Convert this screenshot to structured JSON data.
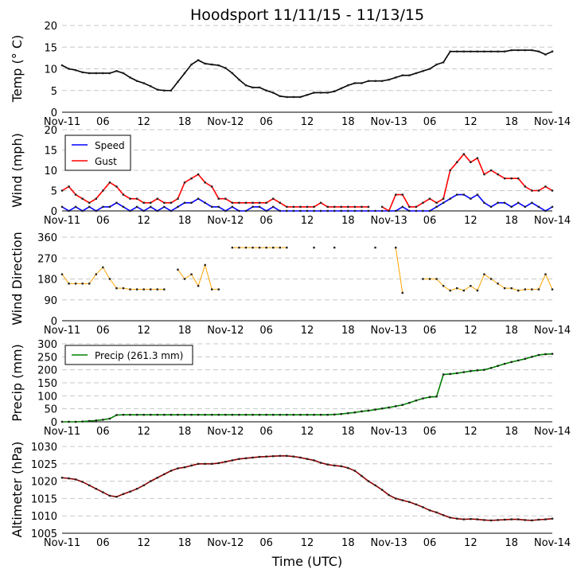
{
  "chart_data": [
    {
      "type": "line",
      "title": "Hoodsport 11/11/15 - 11/13/15",
      "xlabel": "Time (UTC)",
      "ylabel": "Temp ($^\\circ$C)",
      "ylabel_display": "Temp (° C)",
      "ylim": [
        0,
        20
      ],
      "yticks": [
        "0",
        "5",
        "10",
        "15",
        "20"
      ],
      "xticks": [
        "Nov-11",
        "06",
        "12",
        "18",
        "Nov-12",
        "06",
        "12",
        "18",
        "Nov-13",
        "06",
        "12",
        "18",
        "Nov-14"
      ],
      "x_unit": "hours since Nov-11 00:00",
      "series": [
        {
          "name": "Temp",
          "color": "#000000",
          "values": [
            10.8,
            10,
            9.7,
            9.2,
            9,
            9,
            9,
            9,
            9.5,
            9,
            8,
            7.2,
            6.7,
            6,
            5.2,
            5,
            5,
            7,
            9,
            11,
            12,
            11.2,
            11,
            10.8,
            10.2,
            9,
            7.5,
            6.2,
            5.7,
            5.7,
            5,
            4.5,
            3.7,
            3.5,
            3.5,
            3.5,
            4,
            4.5,
            4.5,
            4.5,
            4.8,
            5.5,
            6.2,
            6.7,
            6.7,
            7.2,
            7.2,
            7.2,
            7.5,
            8,
            8.5,
            8.5,
            9,
            9.5,
            10,
            11,
            11.5,
            14,
            14,
            14,
            14,
            14,
            14,
            14,
            14,
            14,
            14.3,
            14.3,
            14.3,
            14.3,
            14,
            13.3,
            14
          ]
        }
      ]
    },
    {
      "type": "line",
      "ylabel": "Wind (mph)",
      "ylim": [
        0,
        20
      ],
      "yticks": [
        "0",
        "5",
        "10",
        "15",
        "20"
      ],
      "xticks": [
        "Nov-11",
        "06",
        "12",
        "18",
        "Nov-12",
        "06",
        "12",
        "18",
        "Nov-13",
        "06",
        "12",
        "18",
        "Nov-14"
      ],
      "legend": "top-left",
      "series": [
        {
          "name": "Speed",
          "color": "#0000ff",
          "values": [
            1,
            0,
            1,
            0,
            1,
            0,
            1,
            1,
            2,
            1,
            0,
            1,
            0,
            1,
            0,
            1,
            0,
            1,
            2,
            2,
            3,
            2,
            1,
            1,
            0,
            1,
            0,
            0,
            1,
            1,
            0,
            1,
            0,
            0,
            0,
            0,
            0,
            0,
            0,
            0,
            0,
            0,
            0,
            0,
            0,
            0,
            0,
            0,
            0,
            0,
            1,
            0,
            0,
            0,
            0,
            1,
            2,
            3,
            4,
            4,
            3,
            4,
            2,
            1,
            2,
            2,
            1,
            2,
            1,
            2,
            1,
            0,
            1
          ]
        },
        {
          "name": "Gust",
          "color": "#ff0000",
          "values": [
            5,
            6,
            4,
            3,
            2,
            3,
            5,
            7,
            6,
            4,
            3,
            3,
            2,
            2,
            3,
            2,
            2,
            3,
            7,
            8,
            9,
            7,
            6,
            3,
            3,
            2,
            2,
            2,
            2,
            2,
            2,
            3,
            2,
            1,
            1,
            1,
            1,
            1,
            2,
            1,
            1,
            1,
            1,
            1,
            1,
            1,
            null,
            1,
            0,
            4,
            4,
            1,
            1,
            2,
            3,
            2,
            3,
            10,
            12,
            14,
            12,
            13,
            9,
            10,
            9,
            8,
            8,
            8,
            6,
            5,
            5,
            6,
            5
          ]
        }
      ]
    },
    {
      "type": "line",
      "ylabel": "Wind Direction",
      "ylim": [
        0,
        360
      ],
      "yticks": [
        "0",
        "90",
        "180",
        "270",
        "360"
      ],
      "xticks": [
        "Nov-11",
        "06",
        "12",
        "18",
        "Nov-12",
        "06",
        "12",
        "18",
        "Nov-13",
        "06",
        "12",
        "18",
        "Nov-14"
      ],
      "series": [
        {
          "name": "Direction",
          "color": "#ffa500",
          "values": [
            200,
            160,
            160,
            160,
            160,
            200,
            230,
            180,
            140,
            140,
            135,
            135,
            135,
            135,
            135,
            135,
            null,
            220,
            180,
            200,
            150,
            240,
            135,
            135,
            null,
            315,
            315,
            315,
            315,
            315,
            315,
            315,
            315,
            315,
            null,
            null,
            null,
            315,
            null,
            null,
            315,
            null,
            null,
            null,
            null,
            null,
            315,
            null,
            null,
            315,
            120,
            null,
            null,
            180,
            180,
            180,
            150,
            130,
            140,
            130,
            150,
            130,
            200,
            180,
            160,
            140,
            140,
            130,
            135,
            135,
            135,
            200,
            135
          ]
        }
      ]
    },
    {
      "type": "line",
      "ylabel": "Precip (mm)",
      "ylim": [
        0,
        300
      ],
      "yticks": [
        "0",
        "50",
        "100",
        "150",
        "200",
        "250",
        "300"
      ],
      "xticks": [
        "Nov-11",
        "06",
        "12",
        "18",
        "Nov-12",
        "06",
        "12",
        "18",
        "Nov-13",
        "06",
        "12",
        "18",
        "Nov-14"
      ],
      "legend": "top-left",
      "series": [
        {
          "name": "Precip (261.3 mm)",
          "color": "#008000",
          "values": [
            0,
            0,
            0,
            1,
            3,
            5,
            8,
            12,
            26,
            27,
            27,
            27,
            27,
            27,
            27,
            27,
            27,
            27,
            27,
            27,
            27,
            27,
            27,
            27,
            27,
            27,
            27,
            27,
            27,
            27,
            27,
            27,
            27,
            27,
            27,
            27,
            27,
            27,
            27,
            27,
            28,
            30,
            33,
            36,
            40,
            43,
            47,
            51,
            55,
            60,
            65,
            73,
            82,
            90,
            95,
            97,
            182,
            184,
            187,
            191,
            195,
            198,
            200,
            207,
            215,
            223,
            230,
            236,
            242,
            250,
            257,
            260,
            261.3
          ]
        }
      ]
    },
    {
      "type": "line",
      "ylabel": "Altimeter (hPa)",
      "ylim": [
        1005,
        1030
      ],
      "yticks": [
        "1005",
        "1010",
        "1015",
        "1020",
        "1025",
        "1030"
      ],
      "xticks": [
        "Nov-11",
        "06",
        "12",
        "18",
        "Nov-12",
        "06",
        "12",
        "18",
        "Nov-13",
        "06",
        "12",
        "18",
        "Nov-14"
      ],
      "series": [
        {
          "name": "Altimeter",
          "color": "#8b0000",
          "values": [
            1021,
            1020.8,
            1020.5,
            1019.8,
            1018.8,
            1017.8,
            1016.8,
            1015.8,
            1015.5,
            1016.3,
            1017,
            1017.8,
            1018.8,
            1020,
            1021,
            1022,
            1023,
            1023.7,
            1024,
            1024.5,
            1025,
            1025,
            1025,
            1025.2,
            1025.6,
            1026,
            1026.4,
            1026.6,
            1026.8,
            1027,
            1027.1,
            1027.2,
            1027.3,
            1027.3,
            1027.1,
            1026.8,
            1026.4,
            1026,
            1025.3,
            1024.8,
            1024.5,
            1024.3,
            1023.8,
            1023,
            1021.5,
            1020,
            1018.8,
            1017.5,
            1016,
            1015,
            1014.5,
            1014,
            1013.3,
            1012.5,
            1011.6,
            1011,
            1010.2,
            1009.5,
            1009.2,
            1009,
            1009.1,
            1009,
            1008.8,
            1008.7,
            1008.8,
            1008.9,
            1009,
            1009,
            1008.8,
            1008.7,
            1008.9,
            1009,
            1009.2
          ]
        }
      ]
    }
  ]
}
